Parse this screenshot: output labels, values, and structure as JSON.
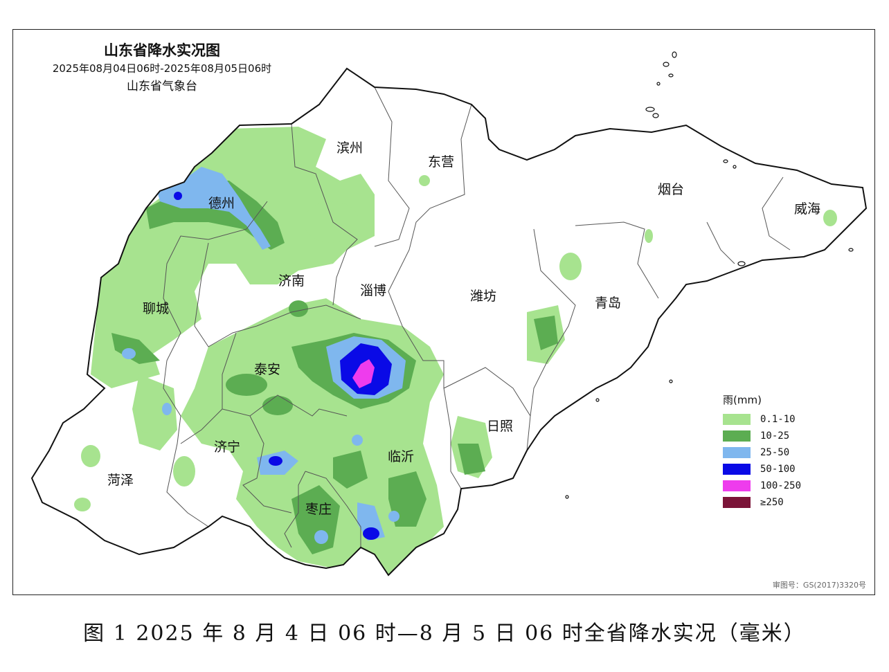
{
  "map": {
    "title": "山东省降水实况图",
    "period": "2025年08月04日06时-2025年08月05日06时",
    "organization": "山东省气象台",
    "review_number": "审图号：GS(2017)3320号",
    "cities": [
      "滨州",
      "东营",
      "烟台",
      "威海",
      "德州",
      "济南",
      "淄博",
      "潍坊",
      "青岛",
      "聊城",
      "泰安",
      "日照",
      "济宁",
      "临沂",
      "菏泽",
      "枣庄"
    ]
  },
  "legend": {
    "title": "雨(mm)",
    "items": [
      {
        "label": "0.1-10",
        "color": "#a7e38f"
      },
      {
        "label": "10-25",
        "color": "#5cad52"
      },
      {
        "label": "25-50",
        "color": "#7fb7ee"
      },
      {
        "label": "50-100",
        "color": "#0a0ae6"
      },
      {
        "label": "100-250",
        "color": "#ee3ced"
      },
      {
        "label": "≥250",
        "color": "#7b1438"
      }
    ]
  },
  "caption": "图 1  2025 年 8 月 4 日 06 时—8 月 5 日 06 时全省降水实况（毫米）"
}
